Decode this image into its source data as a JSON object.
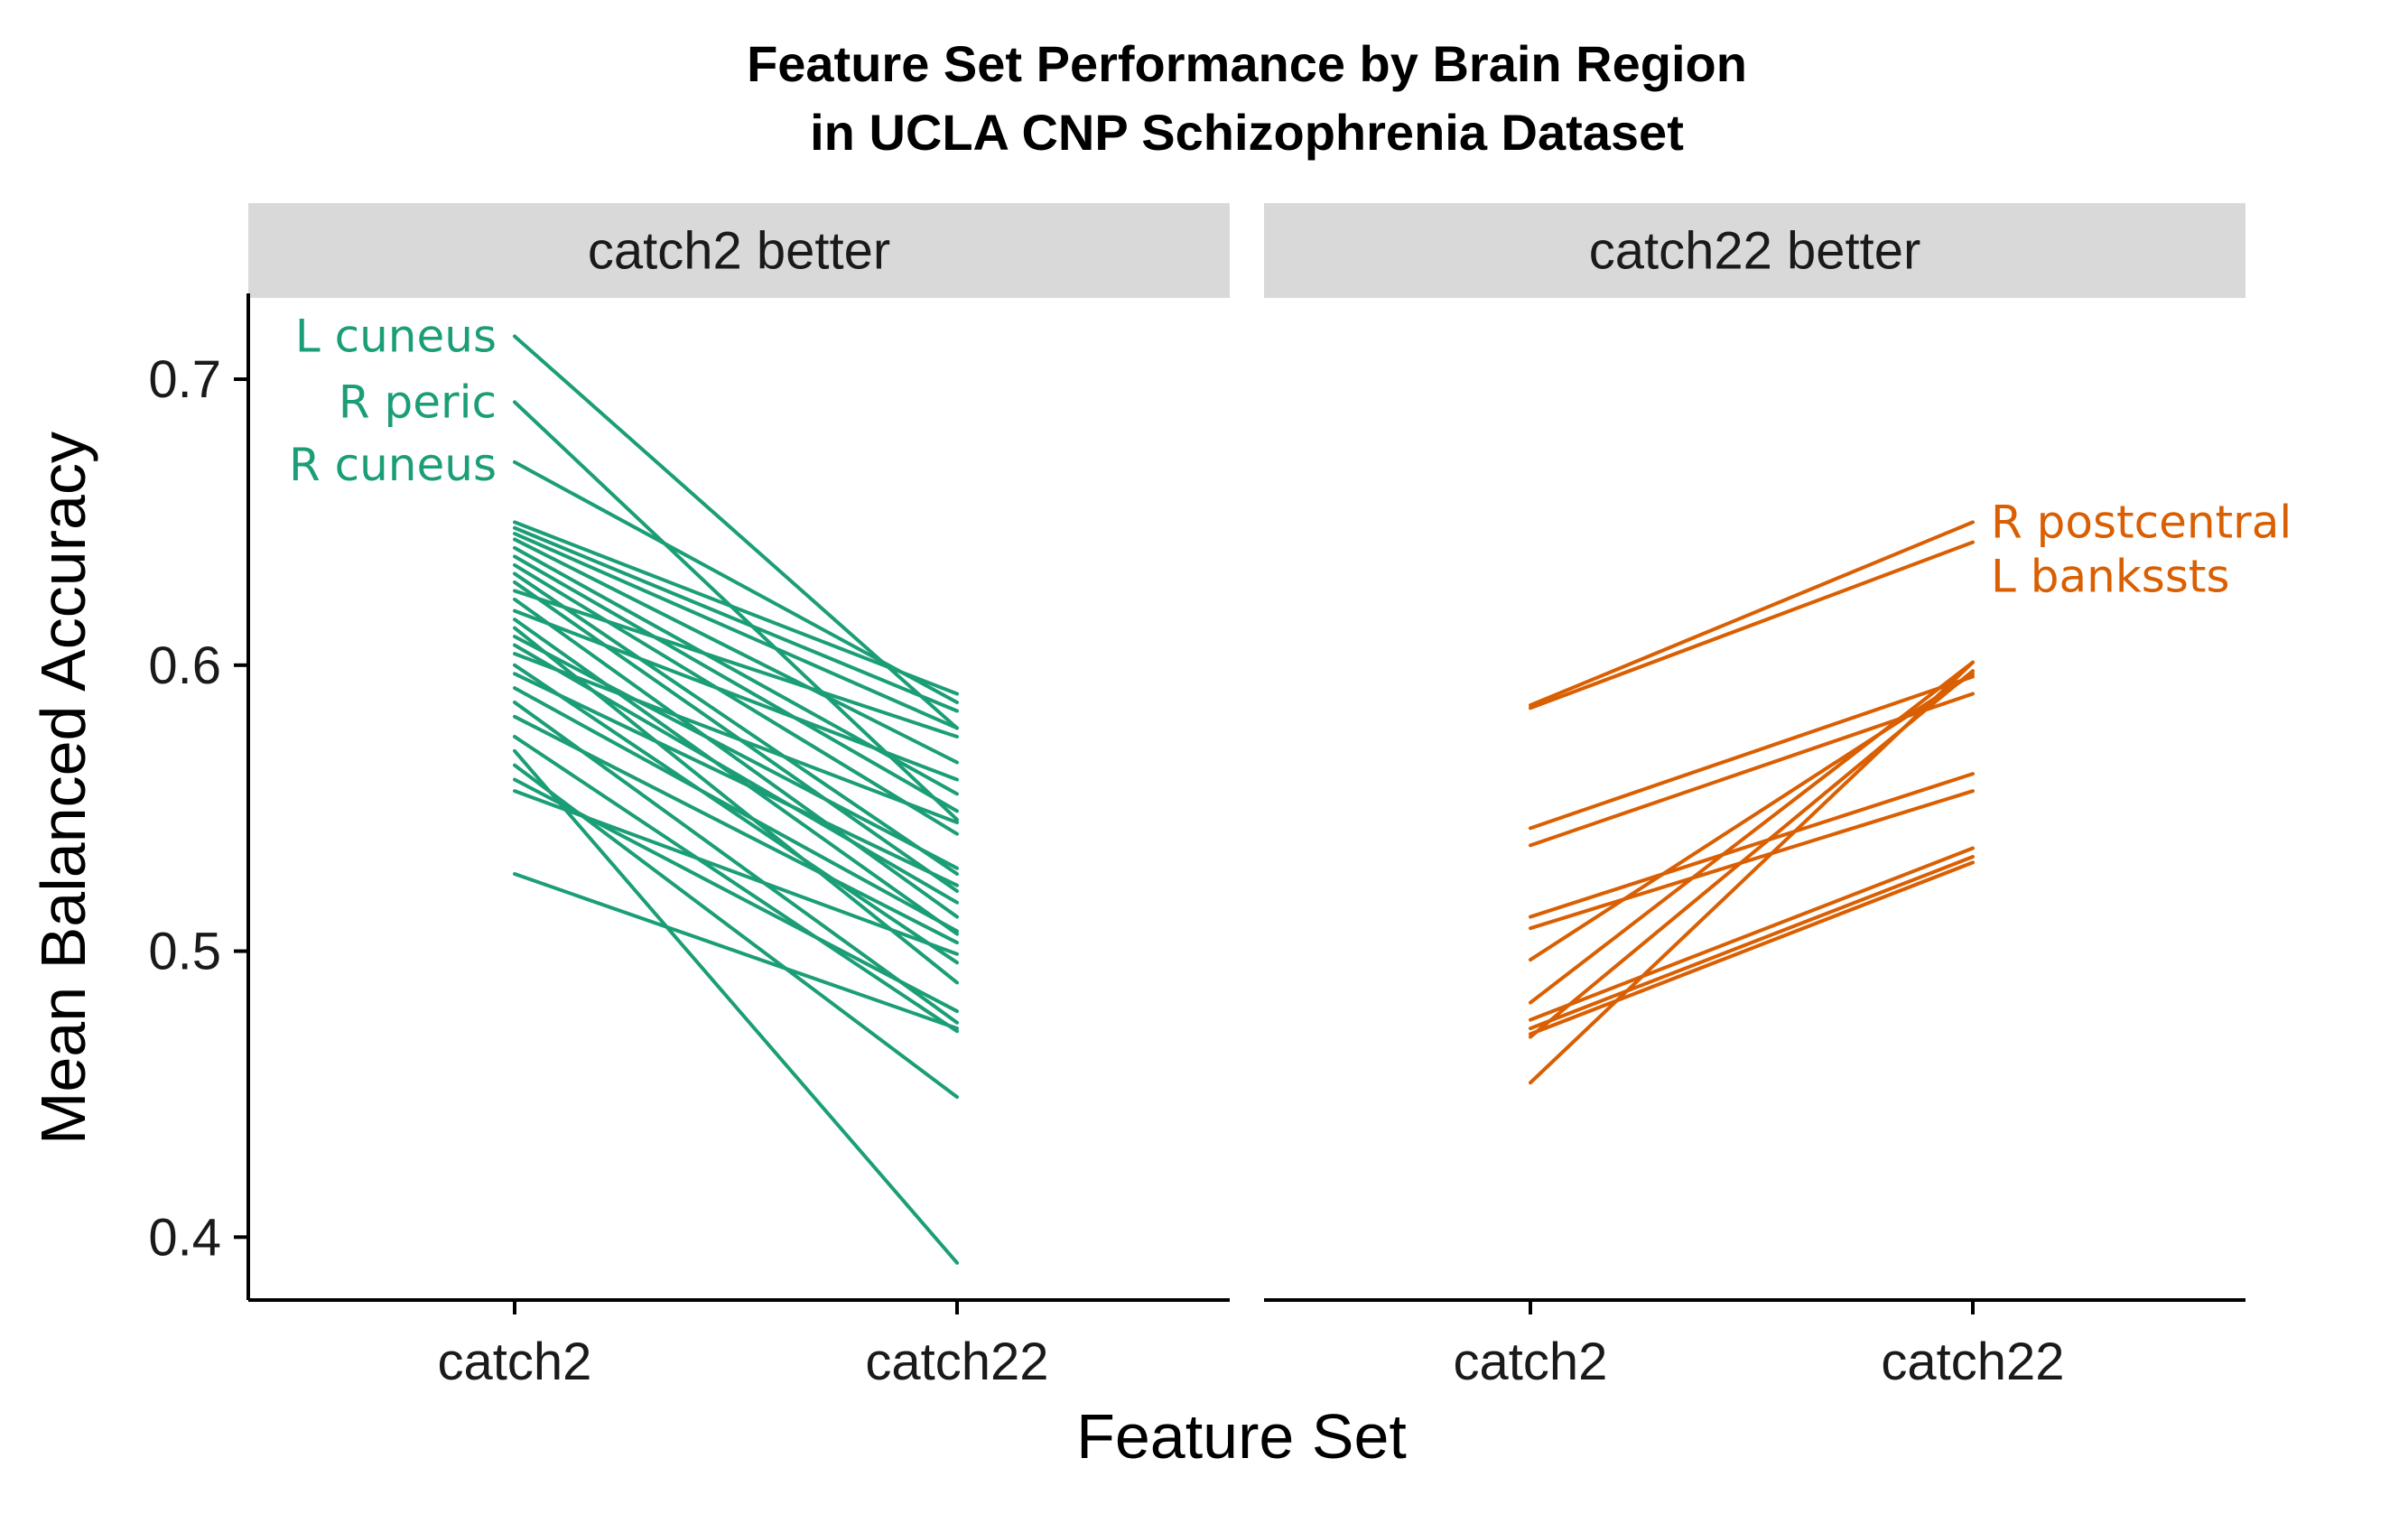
{
  "chart_data": {
    "type": "line",
    "title": "Feature Set Performance by Brain Region",
    "subtitle": "in UCLA CNP Schizophrenia Dataset",
    "xlabel": "Feature Set",
    "ylabel": "Mean Balanced Accuracy",
    "x_categories": [
      "catch2",
      "catch22"
    ],
    "ylim": [
      0.378,
      0.73
    ],
    "y_ticks": [
      0.4,
      0.5,
      0.6,
      0.7
    ],
    "y_tick_labels": [
      "0.4",
      "0.5",
      "0.6",
      "0.7"
    ],
    "grid": false,
    "legend": "none",
    "colors": {
      "catch2_better": "#1B9E77",
      "catch22_better": "#D95F02",
      "strip_bg": "#D9D9D9",
      "axis": "#000000"
    },
    "panels": [
      {
        "strip": "catch2 better",
        "color": "#1B9E77",
        "labels": [
          {
            "text": "L cuneus",
            "y": 0.715
          },
          {
            "text": "R peric",
            "y": 0.692
          },
          {
            "text": "R cuneus",
            "y": 0.67
          }
        ],
        "lines": [
          [
            0.715,
            0.578
          ],
          [
            0.692,
            0.546
          ],
          [
            0.671,
            0.587
          ],
          [
            0.65,
            0.59
          ],
          [
            0.648,
            0.584
          ],
          [
            0.646,
            0.578
          ],
          [
            0.644,
            0.566
          ],
          [
            0.641,
            0.555
          ],
          [
            0.638,
            0.549
          ],
          [
            0.635,
            0.541
          ],
          [
            0.632,
            0.527
          ],
          [
            0.629,
            0.521
          ],
          [
            0.626,
            0.575
          ],
          [
            0.623,
            0.512
          ],
          [
            0.619,
            0.56
          ],
          [
            0.616,
            0.506
          ],
          [
            0.613,
            0.489
          ],
          [
            0.61,
            0.529
          ],
          [
            0.607,
            0.517
          ],
          [
            0.604,
            0.545
          ],
          [
            0.6,
            0.496
          ],
          [
            0.597,
            0.523
          ],
          [
            0.592,
            0.507
          ],
          [
            0.587,
            0.475
          ],
          [
            0.582,
            0.503
          ],
          [
            0.575,
            0.472
          ],
          [
            0.57,
            0.391
          ],
          [
            0.565,
            0.449
          ],
          [
            0.56,
            0.479
          ],
          [
            0.556,
            0.499
          ],
          [
            0.527,
            0.473
          ]
        ]
      },
      {
        "strip": "catch22 better",
        "color": "#D95F02",
        "labels": [
          {
            "text": "R postcentral",
            "y": 0.65
          },
          {
            "text": "L bankssts",
            "y": 0.631
          }
        ],
        "lines": [
          [
            0.586,
            0.65
          ],
          [
            0.585,
            0.643
          ],
          [
            0.543,
            0.596
          ],
          [
            0.537,
            0.59
          ],
          [
            0.512,
            0.562
          ],
          [
            0.508,
            0.556
          ],
          [
            0.497,
            0.597
          ],
          [
            0.482,
            0.601
          ],
          [
            0.476,
            0.536
          ],
          [
            0.473,
            0.533
          ],
          [
            0.471,
            0.531
          ],
          [
            0.47,
            0.598
          ],
          [
            0.454,
            0.601
          ]
        ]
      }
    ]
  }
}
